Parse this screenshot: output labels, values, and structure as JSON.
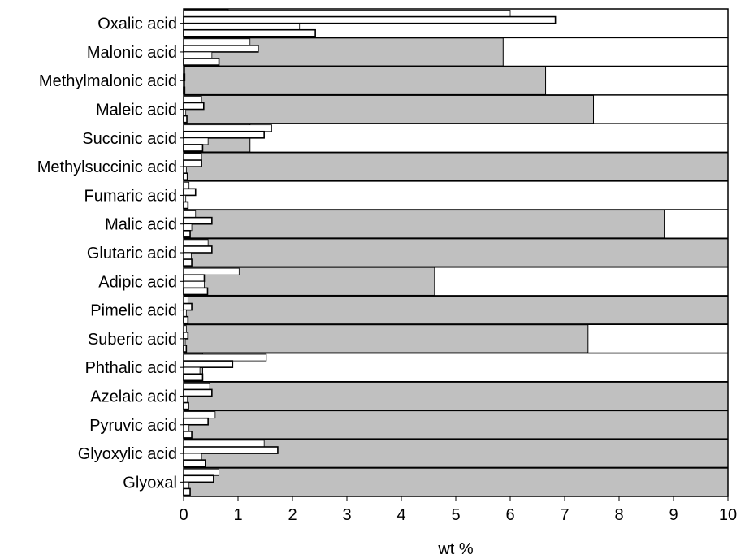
{
  "chart_data": {
    "type": "bar",
    "orientation": "horizontal",
    "title": "",
    "xlabel": "wt %",
    "ylabel": "",
    "xlim": [
      0,
      10
    ],
    "xticks": [
      "0",
      "1",
      "2",
      "3",
      "4",
      "5",
      "6",
      "7",
      "8",
      "9",
      "10"
    ],
    "grid": false,
    "colors": {
      "background_bar": "#c0c0c0",
      "small_bar": "#ffffff",
      "stroke": "#000000"
    },
    "categories": [
      "Oxalic acid",
      "Malonic acid",
      "Methylmalonic acid",
      "Maleic acid",
      "Succinic acid",
      "Methylsuccinic acid",
      "Fumaric acid",
      "Malic acid",
      "Glutaric acid",
      "Adipic acid",
      "Pimelic acid",
      "Suberic acid",
      "Phthalic acid",
      "Azelaic acid",
      "Pyruvic acid",
      "Glyoxylic acid",
      "Glyoxal"
    ],
    "background_values": [
      0.82,
      5.87,
      6.65,
      7.53,
      1.22,
      10,
      0,
      8.83,
      10,
      4.61,
      10,
      7.43,
      0.35,
      10,
      10,
      10,
      10
    ],
    "sub_values": [
      [
        6.0,
        6.83,
        2.13,
        2.42
      ],
      [
        1.22,
        1.37,
        0.52,
        0.65
      ],
      [
        0.02,
        0.02,
        0.02,
        0.02
      ],
      [
        0.33,
        0.37,
        0.04,
        0.06
      ],
      [
        1.62,
        1.48,
        0.45,
        0.35
      ],
      [
        0.33,
        0.33,
        0.05,
        0.07
      ],
      [
        0.1,
        0.22,
        0.04,
        0.08
      ],
      [
        0.22,
        0.52,
        0.15,
        0.12
      ],
      [
        0.45,
        0.52,
        0.14,
        0.15
      ],
      [
        1.02,
        0.38,
        0.38,
        0.44
      ],
      [
        0.08,
        0.15,
        0.05,
        0.08
      ],
      [
        0.05,
        0.08,
        0.03,
        0.05
      ],
      [
        1.52,
        0.9,
        0.3,
        0.35
      ],
      [
        0.48,
        0.52,
        0.07,
        0.09
      ],
      [
        0.58,
        0.45,
        0.1,
        0.15
      ],
      [
        1.48,
        1.73,
        0.33,
        0.4
      ],
      [
        0.65,
        0.55,
        0.1,
        0.12
      ]
    ]
  }
}
